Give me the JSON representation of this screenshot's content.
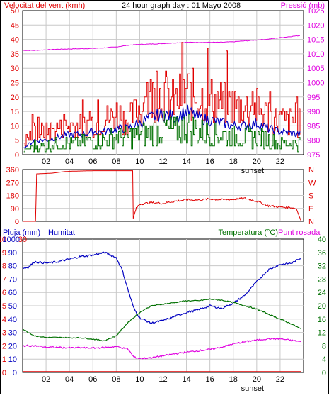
{
  "header": {
    "left_title": "Velocitat del vent (kmh)",
    "center_title": "24 hour graph day : 01 Mayo 2008",
    "right_title": "Pressió (mb)"
  },
  "colors": {
    "red": "#e00000",
    "magenta": "#e000e0",
    "blue": "#0000c0",
    "green": "#007000",
    "grid": "#c8c8c8",
    "axis": "#000000",
    "background": "#ffffff"
  },
  "chart_data": [
    {
      "type": "line",
      "panel": "wind_pressure",
      "left_axis": {
        "label": "Velocitat del vent (kmh)",
        "ylim": [
          0,
          50
        ],
        "ticks": [
          0,
          5,
          10,
          15,
          20,
          25,
          30,
          35,
          40,
          45,
          50
        ]
      },
      "right_axis": {
        "label": "Pressió (mb)",
        "ylim": [
          975,
          1025
        ],
        "ticks": [
          975,
          980,
          985,
          990,
          995,
          1000,
          1005,
          1010,
          1015,
          1020,
          1025
        ]
      },
      "x_ticks": [
        "02",
        "04",
        "06",
        "08",
        "10",
        "12",
        "14",
        "16",
        "18",
        "20",
        "22"
      ],
      "x_marker": "sunset",
      "x_marker_hour": 20,
      "grid": true,
      "series": [
        {
          "axis": "right",
          "color": "magenta",
          "x": [
            0,
            1,
            2,
            3,
            4,
            5,
            6,
            7,
            8,
            9,
            10,
            11,
            12,
            13,
            14,
            15,
            16,
            17,
            18,
            19,
            20,
            21,
            22,
            23.8
          ],
          "values": [
            1011.2,
            1011.2,
            1011.4,
            1011.6,
            1011.7,
            1011.8,
            1011.9,
            1012.1,
            1012.4,
            1013,
            1013.3,
            1013.4,
            1013.6,
            1013.8,
            1014,
            1014,
            1014,
            1014,
            1014.2,
            1014.5,
            1014.8,
            1015.1,
            1015.6,
            1016.4
          ]
        },
        {
          "axis": "left",
          "color": "red",
          "x": [
            0,
            1,
            2,
            3,
            4,
            5,
            6,
            7,
            8,
            9,
            10,
            11,
            12,
            13,
            14,
            15,
            16,
            17,
            18,
            19,
            20,
            21,
            22,
            23.8
          ],
          "values": [
            4,
            8,
            8,
            9,
            10,
            10,
            11,
            12,
            14,
            12,
            16,
            20,
            21,
            18,
            22,
            20,
            19,
            18,
            17,
            16,
            16,
            13,
            12,
            11
          ]
        },
        {
          "axis": "left",
          "color": "blue",
          "x": [
            0,
            1,
            2,
            3,
            4,
            5,
            6,
            7,
            8,
            9,
            10,
            11,
            12,
            13,
            14,
            15,
            16,
            17,
            18,
            19,
            20,
            21,
            22,
            23.8
          ],
          "values": [
            2,
            5,
            5,
            6,
            7,
            7,
            8,
            8,
            9,
            9,
            11,
            13,
            14,
            13,
            15,
            13,
            12,
            11,
            10,
            10,
            11,
            9,
            8,
            7
          ]
        },
        {
          "axis": "left",
          "color": "green",
          "x": [
            0,
            1,
            2,
            3,
            4,
            5,
            6,
            7,
            8,
            9,
            10,
            11,
            12,
            13,
            14,
            15,
            16,
            17,
            18,
            19,
            20,
            21,
            22,
            23.8
          ],
          "values": [
            1,
            3,
            3,
            4,
            4,
            4,
            5,
            5,
            6,
            6,
            7,
            8,
            9,
            8,
            10,
            8,
            7,
            7,
            6,
            6,
            6,
            5,
            4,
            4
          ]
        }
      ]
    },
    {
      "type": "line",
      "panel": "wind_direction",
      "left_axis": {
        "ylim": [
          0,
          360
        ],
        "ticks": [
          0,
          90,
          180,
          270,
          360
        ]
      },
      "right_axis_labels": [
        "N",
        "W",
        "S",
        "E",
        "N"
      ],
      "grid": true,
      "series": [
        {
          "axis": "left",
          "color": "red",
          "x": [
            0,
            1.1,
            1.2,
            2.5,
            3.5,
            4,
            6,
            9.4,
            9.45,
            9.7,
            10,
            11,
            12,
            13,
            14,
            15,
            16,
            17,
            18,
            19,
            20,
            21,
            22,
            23,
            23.4,
            23.8
          ],
          "values": [
            0,
            0,
            330,
            335,
            345,
            348,
            352,
            352,
            20,
            90,
            120,
            130,
            125,
            140,
            150,
            148,
            155,
            150,
            152,
            160,
            140,
            108,
            100,
            97,
            85,
            0
          ]
        }
      ]
    },
    {
      "type": "line",
      "panel": "rain_humidity_temperature",
      "left_axis_rain": {
        "label": "Pluja (mm)",
        "ylim": [
          0,
          10
        ],
        "ticks": [
          0,
          1,
          2,
          3,
          4,
          5,
          6,
          7,
          8,
          9,
          10
        ]
      },
      "left_axis_humidity": {
        "label": "Humitat",
        "ylim": [
          0,
          100
        ],
        "ticks": [
          0,
          10,
          20,
          30,
          40,
          50,
          60,
          70,
          80,
          90,
          100
        ]
      },
      "third_axis": {
        "ylim": [
          0,
          30
        ],
        "ticks": [
          0,
          3,
          6,
          9,
          12,
          15,
          18,
          21,
          24,
          27,
          30
        ]
      },
      "right_axis": {
        "label": "Temperatura (°C)Punt rosada",
        "ylim": [
          0,
          40
        ],
        "ticks": [
          0,
          4,
          8,
          12,
          16,
          20,
          24,
          28,
          32,
          36,
          40
        ]
      },
      "x_ticks": [
        "02",
        "04",
        "06",
        "08",
        "10",
        "12",
        "14",
        "16",
        "18",
        "20",
        "22"
      ],
      "x_marker": "sunset",
      "x_marker_hour": 20,
      "grid": true,
      "series": [
        {
          "axis": "humidity",
          "color": "blue",
          "x": [
            0,
            0.5,
            1,
            2,
            3,
            4,
            5,
            6,
            7,
            8,
            8.5,
            9,
            9.5,
            10,
            11,
            12,
            13,
            14,
            15,
            16,
            17,
            18,
            19,
            20,
            21,
            22,
            23,
            23.8
          ],
          "values": [
            78,
            79,
            83,
            82,
            83,
            85,
            87,
            88,
            90,
            86,
            77,
            62,
            48,
            41,
            37,
            39,
            42,
            45,
            47,
            50,
            48,
            52,
            58,
            68,
            77,
            81,
            82,
            86
          ]
        },
        {
          "axis": "right",
          "color": "green",
          "x": [
            0,
            1,
            2,
            3,
            4,
            5,
            6,
            7,
            8,
            9,
            10,
            11,
            12,
            13,
            14,
            15,
            16,
            17,
            18,
            19,
            20,
            21,
            22,
            23,
            23.8
          ],
          "values": [
            13,
            11,
            10.5,
            10.5,
            10.4,
            10.4,
            10,
            9.5,
            11,
            15,
            18,
            20,
            20.5,
            21,
            21.5,
            21.5,
            22,
            21.7,
            21,
            20,
            19,
            17.5,
            16,
            14.5,
            13
          ]
        },
        {
          "axis": "right",
          "color": "magenta",
          "x": [
            0,
            1,
            2,
            3,
            4,
            5,
            6,
            7,
            8,
            9,
            9.5,
            10,
            11,
            12,
            13,
            14,
            15,
            16,
            17,
            18,
            19,
            20,
            21,
            22,
            23,
            23.8
          ],
          "values": [
            8,
            8,
            7.6,
            7.5,
            7.4,
            7.4,
            7.3,
            7.5,
            7.8,
            7,
            4.6,
            4.2,
            4.4,
            5,
            5.6,
            6.1,
            6.5,
            6.9,
            7.6,
            8.6,
            9.2,
            9.7,
            10.1,
            10.1,
            9.6,
            9.2
          ]
        },
        {
          "axis": "rain",
          "color": "red",
          "x": [
            0,
            23.8
          ],
          "values": [
            0,
            0
          ]
        }
      ]
    }
  ],
  "panel3_labels": {
    "rain": "Pluja (mm)",
    "humidity": "Humitat",
    "temp": "Temperatura (°C)",
    "dew": "Punt rosada"
  }
}
